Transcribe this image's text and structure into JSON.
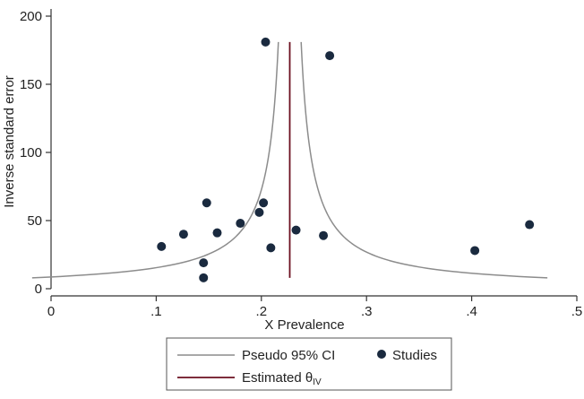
{
  "chart_data": {
    "type": "scatter",
    "title": "",
    "xlabel": "X Prevalence",
    "ylabel": "Inverse standard error",
    "xlim": [
      0,
      0.5
    ],
    "ylim": [
      0,
      200
    ],
    "x_ticks": [
      0,
      0.1,
      0.2,
      0.3,
      0.4,
      0.5
    ],
    "x_tick_labels": [
      "0",
      ".1",
      ".2",
      ".3",
      ".4",
      ".5"
    ],
    "y_ticks": [
      0,
      50,
      100,
      150,
      200
    ],
    "y_tick_labels": [
      "0",
      "50",
      "100",
      "150",
      "200"
    ],
    "grid": false,
    "legend_position": "bottom",
    "estimate": 0.227,
    "ci_curve": {
      "y_min": 8,
      "y_max": 181,
      "z": 1.96
    },
    "series": [
      {
        "name": "Studies",
        "color": "#1a2a3f",
        "points": [
          {
            "x": 0.105,
            "y": 31
          },
          {
            "x": 0.126,
            "y": 40
          },
          {
            "x": 0.145,
            "y": 19
          },
          {
            "x": 0.145,
            "y": 8
          },
          {
            "x": 0.148,
            "y": 63
          },
          {
            "x": 0.158,
            "y": 41
          },
          {
            "x": 0.18,
            "y": 48
          },
          {
            "x": 0.198,
            "y": 56
          },
          {
            "x": 0.202,
            "y": 63
          },
          {
            "x": 0.204,
            "y": 181
          },
          {
            "x": 0.209,
            "y": 30
          },
          {
            "x": 0.233,
            "y": 43
          },
          {
            "x": 0.259,
            "y": 39
          },
          {
            "x": 0.265,
            "y": 171
          },
          {
            "x": 0.403,
            "y": 28
          },
          {
            "x": 0.455,
            "y": 47
          }
        ]
      }
    ],
    "legend": {
      "ci_label": "Pseudo 95% CI",
      "studies_label": "Studies",
      "estimate_label": "Estimated θ",
      "estimate_subscript": "IV"
    },
    "colors": {
      "ci_line": "#8c8c8c",
      "estimate_line": "#6b1020",
      "axis": "#333333"
    }
  }
}
